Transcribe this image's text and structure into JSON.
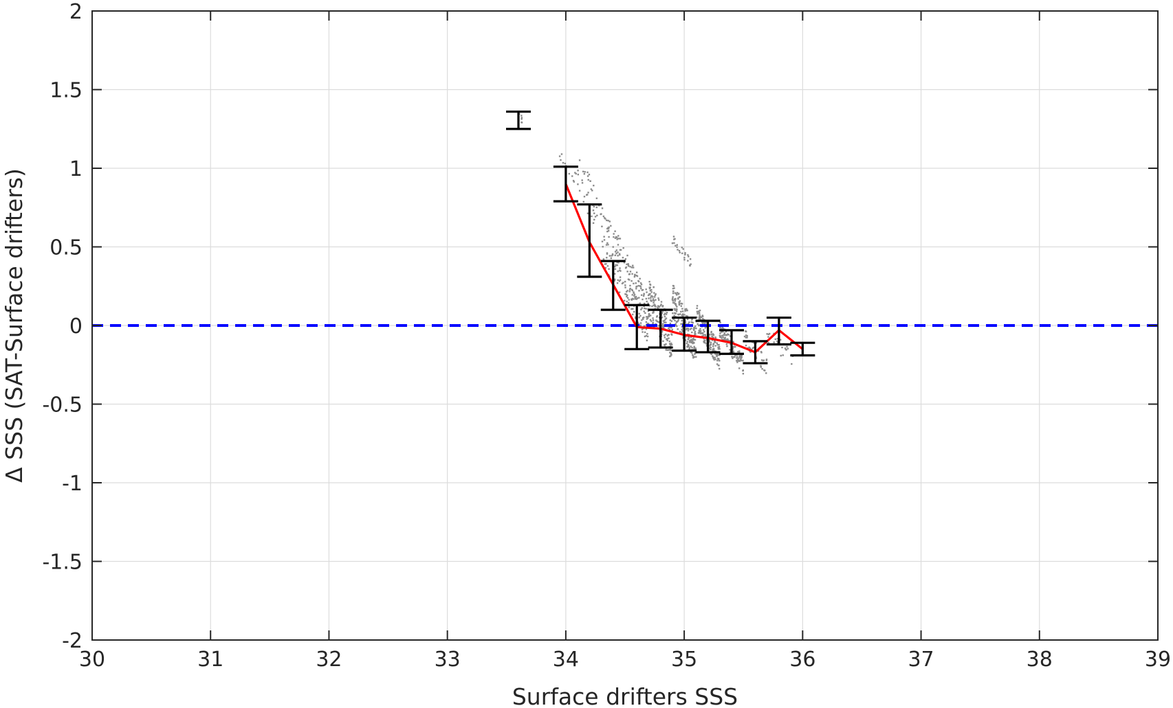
{
  "chart_data": {
    "type": "scatter",
    "xlabel": "Surface drifters SSS",
    "ylabel": "Δ SSS (SAT-Surface drifters)",
    "xlim": [
      30,
      39
    ],
    "ylim": [
      -2,
      2
    ],
    "xticks": [
      30,
      31,
      32,
      33,
      34,
      35,
      36,
      37,
      38,
      39
    ],
    "yticks": [
      -2,
      -1.5,
      -1,
      -0.5,
      0,
      0.5,
      1,
      1.5,
      2
    ],
    "xtick_labels": [
      "30",
      "31",
      "32",
      "33",
      "34",
      "35",
      "36",
      "37",
      "38",
      "39"
    ],
    "ytick_labels": [
      "-2",
      "-1.5",
      "-1",
      "-0.5",
      "0",
      "0.5",
      "1",
      "1.5",
      "2"
    ],
    "grid": true,
    "reference_line": {
      "y": 0,
      "style": "dashed",
      "color": "#0000ff"
    },
    "colors": {
      "scatter": "#8c8c8c",
      "mean_line": "#ff0000",
      "error_bars": "#000000",
      "reference": "#0000ff",
      "grid": "#dcdcdc",
      "axes": "#262626"
    },
    "error_bars": [
      {
        "x": 33.6,
        "low": 1.25,
        "high": 1.36
      },
      {
        "x": 34.0,
        "low": 0.79,
        "high": 1.01
      },
      {
        "x": 34.2,
        "low": 0.31,
        "high": 0.77
      },
      {
        "x": 34.4,
        "low": 0.1,
        "high": 0.41
      },
      {
        "x": 34.6,
        "low": -0.15,
        "high": 0.13
      },
      {
        "x": 34.8,
        "low": -0.14,
        "high": 0.1
      },
      {
        "x": 35.0,
        "low": -0.16,
        "high": 0.05
      },
      {
        "x": 35.2,
        "low": -0.17,
        "high": 0.03
      },
      {
        "x": 35.4,
        "low": -0.18,
        "high": -0.03
      },
      {
        "x": 35.6,
        "low": -0.24,
        "high": -0.1
      },
      {
        "x": 35.8,
        "low": -0.12,
        "high": 0.05
      },
      {
        "x": 36.0,
        "low": -0.19,
        "high": -0.11
      }
    ],
    "mean_line": {
      "x": [
        34.0,
        34.2,
        34.4,
        34.6,
        34.8,
        35.0,
        35.2,
        35.4,
        35.6,
        35.8,
        36.0
      ],
      "y": [
        0.9,
        0.53,
        0.26,
        -0.01,
        -0.02,
        -0.06,
        -0.08,
        -0.11,
        -0.17,
        -0.03,
        -0.15
      ]
    },
    "scatter_groups": [
      {
        "x_range": [
          33.6,
          33.64
        ],
        "y_at_start": 1.33,
        "slope": -1.0,
        "spread": 0.03,
        "count": 6
      },
      {
        "x_range": [
          33.93,
          34.1
        ],
        "y_at_start": 1.1,
        "slope": -1.1,
        "spread": 0.05,
        "count": 12
      },
      {
        "x_range": [
          34.1,
          34.3
        ],
        "y_at_start": 0.95,
        "slope": -1.2,
        "spread": 0.14,
        "count": 40
      },
      {
        "x_range": [
          34.3,
          34.5
        ],
        "y_at_start": 0.58,
        "slope": -1.3,
        "spread": 0.18,
        "count": 90
      },
      {
        "x_range": [
          34.5,
          34.7
        ],
        "y_at_start": 0.32,
        "slope": -1.4,
        "spread": 0.16,
        "count": 150
      },
      {
        "x_range": [
          34.7,
          34.9
        ],
        "y_at_start": 0.18,
        "slope": -1.4,
        "spread": 0.13,
        "count": 190
      },
      {
        "x_range": [
          34.9,
          35.1
        ],
        "y_at_start": 0.16,
        "slope": -1.4,
        "spread": 0.12,
        "count": 210
      },
      {
        "x_range": [
          35.1,
          35.3
        ],
        "y_at_start": 0.06,
        "slope": -1.3,
        "spread": 0.08,
        "count": 180
      },
      {
        "x_range": [
          35.3,
          35.5
        ],
        "y_at_start": -0.02,
        "slope": -1.2,
        "spread": 0.06,
        "count": 120
      },
      {
        "x_range": [
          35.5,
          35.7
        ],
        "y_at_start": -0.06,
        "slope": -1.0,
        "spread": 0.06,
        "count": 40
      },
      {
        "x_range": [
          35.7,
          35.92
        ],
        "y_at_start": -0.05,
        "slope": -0.8,
        "spread": 0.05,
        "count": 25
      },
      {
        "x_range": [
          34.9,
          35.08
        ],
        "y_at_start": 0.55,
        "slope": -1.0,
        "spread": 0.03,
        "count": 25
      }
    ]
  }
}
